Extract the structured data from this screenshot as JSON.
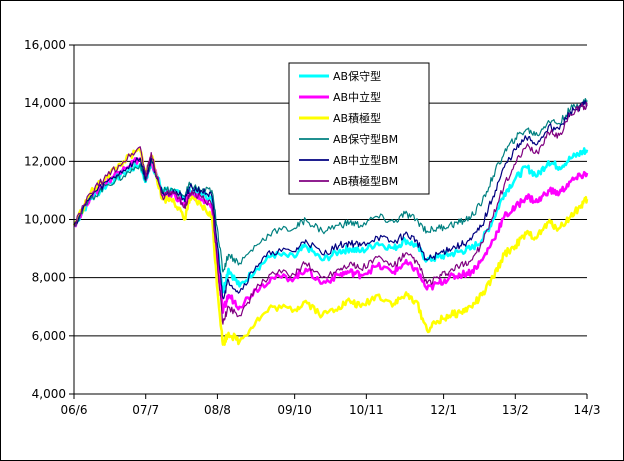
{
  "chart_data": {
    "type": "line",
    "title": "",
    "xlabel": "",
    "ylabel": "",
    "ylim": [
      4000,
      16000
    ],
    "yticks": [
      4000,
      6000,
      8000,
      10000,
      12000,
      14000,
      16000
    ],
    "y_tick_labels": [
      "4,000",
      "6,000",
      "8,000",
      "10,000",
      "12,000",
      "14,000",
      "16,000"
    ],
    "x_tick_labels": [
      "06/6",
      "07/7",
      "08/8",
      "09/10",
      "10/11",
      "12/1",
      "13/2",
      "14/3"
    ],
    "x_tick_months": [
      0,
      13,
      26,
      40,
      53,
      67,
      80,
      93
    ],
    "grid": "horizontal",
    "legend_position": "upper-center",
    "series": [
      {
        "name": "AB保守型",
        "color": "#00FFFF",
        "line_width": 2.5,
        "x_month": [
          0,
          3,
          6,
          9,
          12,
          13,
          14,
          16,
          18,
          20,
          21,
          23,
          25,
          26,
          27,
          28,
          30,
          33,
          36,
          40,
          42,
          45,
          48,
          50,
          52,
          55,
          58,
          60,
          62,
          64,
          66,
          68,
          70,
          72,
          74,
          76,
          78,
          80,
          82,
          84,
          86,
          88,
          90,
          92,
          93
        ],
        "values": [
          9800,
          10700,
          11200,
          11600,
          11900,
          11300,
          12000,
          11000,
          11000,
          10700,
          11000,
          10900,
          10700,
          9000,
          7500,
          8300,
          7700,
          8300,
          8800,
          8700,
          9100,
          8600,
          8900,
          9000,
          8900,
          9200,
          9000,
          9300,
          9100,
          8600,
          8700,
          8800,
          8900,
          9000,
          9300,
          10000,
          10900,
          11400,
          11800,
          11500,
          12000,
          11800,
          12100,
          12300,
          12400
        ]
      },
      {
        "name": "AB中立型",
        "color": "#FF00FF",
        "line_width": 2.5,
        "x_month": [
          0,
          3,
          6,
          9,
          12,
          13,
          14,
          16,
          18,
          20,
          21,
          23,
          25,
          26,
          27,
          28,
          30,
          33,
          36,
          40,
          42,
          45,
          48,
          50,
          52,
          55,
          58,
          60,
          62,
          64,
          66,
          68,
          70,
          72,
          74,
          76,
          78,
          80,
          82,
          84,
          86,
          88,
          90,
          92,
          93
        ],
        "values": [
          9800,
          10800,
          11300,
          11800,
          12100,
          11400,
          12100,
          10800,
          10900,
          10500,
          10900,
          10700,
          10400,
          8500,
          6800,
          7400,
          7000,
          7600,
          8000,
          8000,
          8300,
          7800,
          8100,
          8200,
          8100,
          8400,
          8200,
          8500,
          8300,
          7600,
          7800,
          8000,
          8100,
          8200,
          8600,
          9300,
          10100,
          10400,
          10800,
          10600,
          11000,
          10900,
          11300,
          11500,
          11600
        ]
      },
      {
        "name": "AB積極型",
        "color": "#FFFF00",
        "line_width": 2.5,
        "x_month": [
          0,
          3,
          6,
          9,
          12,
          13,
          14,
          16,
          18,
          20,
          21,
          23,
          25,
          26,
          27,
          28,
          30,
          33,
          36,
          40,
          42,
          45,
          48,
          50,
          52,
          55,
          58,
          60,
          62,
          64,
          66,
          68,
          70,
          72,
          74,
          76,
          78,
          80,
          82,
          84,
          86,
          88,
          90,
          92,
          93
        ],
        "values": [
          9800,
          10900,
          11500,
          12000,
          12400,
          11500,
          12200,
          10700,
          10700,
          10000,
          10700,
          10500,
          10100,
          7600,
          5700,
          6100,
          5800,
          6500,
          7000,
          6900,
          7200,
          6700,
          7000,
          7200,
          7000,
          7400,
          7100,
          7400,
          7200,
          6200,
          6500,
          6700,
          6800,
          7000,
          7400,
          8000,
          8800,
          9100,
          9500,
          9400,
          9900,
          9700,
          10100,
          10500,
          10700
        ]
      },
      {
        "name": "AB保守型BM",
        "color": "#008080",
        "line_width": 1.2,
        "x_month": [
          0,
          3,
          6,
          9,
          12,
          13,
          14,
          16,
          18,
          20,
          21,
          23,
          25,
          26,
          27,
          28,
          30,
          33,
          36,
          40,
          42,
          45,
          48,
          50,
          52,
          55,
          58,
          60,
          62,
          64,
          66,
          68,
          70,
          72,
          74,
          76,
          78,
          80,
          82,
          84,
          86,
          88,
          90,
          92,
          93
        ],
        "values": [
          9800,
          10700,
          11200,
          11500,
          11900,
          11300,
          12000,
          11000,
          11000,
          10800,
          11200,
          11000,
          11000,
          9700,
          8200,
          8800,
          8500,
          9100,
          9600,
          9700,
          10000,
          9600,
          9800,
          9900,
          9800,
          10100,
          9900,
          10200,
          10000,
          9600,
          9700,
          9800,
          9900,
          10100,
          10600,
          11500,
          12300,
          12800,
          13100,
          12900,
          13400,
          13300,
          13800,
          14000,
          14100
        ]
      },
      {
        "name": "AB中立型BM",
        "color": "#000080",
        "line_width": 1.2,
        "x_month": [
          0,
          3,
          6,
          9,
          12,
          13,
          14,
          16,
          18,
          20,
          21,
          23,
          25,
          26,
          27,
          28,
          30,
          33,
          36,
          40,
          42,
          45,
          48,
          50,
          52,
          55,
          58,
          60,
          62,
          64,
          66,
          68,
          70,
          72,
          74,
          76,
          78,
          80,
          82,
          84,
          86,
          88,
          90,
          92,
          93
        ],
        "values": [
          9800,
          10800,
          11300,
          11700,
          12100,
          11400,
          12100,
          10900,
          11000,
          10700,
          11100,
          11000,
          10800,
          9100,
          7300,
          7900,
          7500,
          8400,
          8900,
          8900,
          9300,
          8800,
          9100,
          9200,
          9100,
          9400,
          9200,
          9500,
          9300,
          8600,
          8800,
          9000,
          9100,
          9300,
          9800,
          10800,
          11800,
          12400,
          12800,
          12600,
          13200,
          13100,
          13700,
          13900,
          14000
        ]
      },
      {
        "name": "AB積極型BM",
        "color": "#800080",
        "line_width": 1.2,
        "x_month": [
          0,
          3,
          6,
          9,
          12,
          13,
          14,
          16,
          18,
          20,
          21,
          23,
          25,
          26,
          27,
          28,
          30,
          33,
          36,
          40,
          42,
          45,
          48,
          50,
          52,
          55,
          58,
          60,
          62,
          64,
          66,
          68,
          70,
          72,
          74,
          76,
          78,
          80,
          82,
          84,
          86,
          88,
          90,
          92,
          93
        ],
        "values": [
          9800,
          10900,
          11500,
          12000,
          12500,
          11500,
          12300,
          10800,
          10900,
          10400,
          10900,
          10800,
          10500,
          8500,
          6400,
          7000,
          6700,
          7600,
          8200,
          8100,
          8500,
          8000,
          8300,
          8500,
          8300,
          8700,
          8400,
          8800,
          8600,
          7800,
          8000,
          8200,
          8400,
          8600,
          9200,
          10100,
          11200,
          11900,
          12500,
          12300,
          13000,
          12900,
          13600,
          13900,
          13900
        ]
      }
    ]
  }
}
